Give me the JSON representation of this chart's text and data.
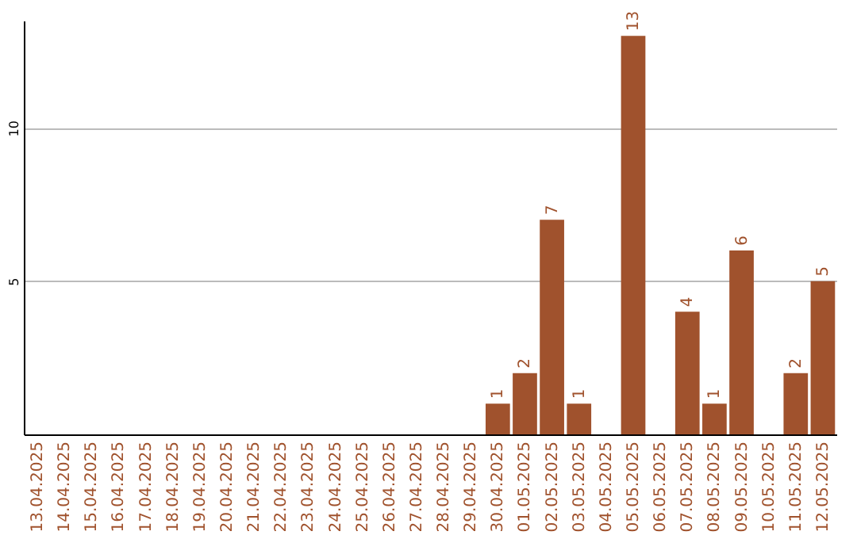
{
  "chart_data": {
    "type": "bar",
    "categories": [
      "13.04.2025",
      "14.04.2025",
      "15.04.2025",
      "16.04.2025",
      "17.04.2025",
      "18.04.2025",
      "19.04.2025",
      "20.04.2025",
      "21.04.2025",
      "22.04.2025",
      "23.04.2025",
      "24.04.2025",
      "25.04.2025",
      "26.04.2025",
      "27.04.2025",
      "28.04.2025",
      "29.04.2025",
      "30.04.2025",
      "01.05.2025",
      "02.05.2025",
      "03.05.2025",
      "04.05.2025",
      "05.05.2025",
      "06.05.2025",
      "07.05.2025",
      "08.05.2025",
      "09.05.2025",
      "10.05.2025",
      "11.05.2025",
      "12.05.2025"
    ],
    "values": [
      0,
      0,
      0,
      0,
      0,
      0,
      0,
      0,
      0,
      0,
      0,
      0,
      0,
      0,
      0,
      0,
      0,
      1,
      2,
      7,
      1,
      0,
      13,
      0,
      4,
      1,
      6,
      0,
      2,
      5
    ],
    "value_labels": [
      null,
      null,
      null,
      null,
      null,
      null,
      null,
      null,
      null,
      null,
      null,
      null,
      null,
      null,
      null,
      null,
      null,
      "1",
      "2",
      "7",
      "1",
      null,
      "13",
      null,
      "4",
      "1",
      "6",
      null,
      "2",
      "5"
    ],
    "color": "#a0522d",
    "ylim": [
      0,
      13.5
    ],
    "yticks": [
      5,
      10
    ],
    "grid": "y"
  }
}
